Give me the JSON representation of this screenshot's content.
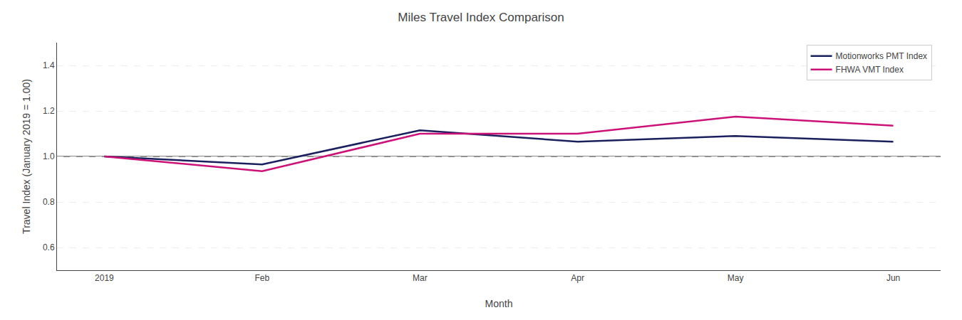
{
  "chart_data": {
    "type": "line",
    "title": "Miles Travel Index Comparison",
    "x_label": "Month",
    "y_label": "Travel Index (January 2019 = 1.00)",
    "categories": [
      "2019",
      "Feb",
      "Mar",
      "Apr",
      "May",
      "Jun"
    ],
    "series": [
      {
        "name": "Motionworks PMT Index",
        "color": "#1a1f5e",
        "values": [
          1.0,
          0.965,
          1.115,
          1.065,
          1.09,
          1.065
        ]
      },
      {
        "name": "FHWA VMT Index",
        "color": "#cc1177",
        "values": [
          1.0,
          0.935,
          1.1,
          1.1,
          1.175,
          1.135
        ]
      }
    ],
    "reference_line": {
      "value": 1.0,
      "color": "#222222"
    },
    "ylim": [
      0.5,
      1.5
    ],
    "yticks": [
      0.6,
      0.8,
      {
        "value": 1.0,
        "label": "1.0"
      },
      1.2,
      1.4
    ],
    "grid": true,
    "legend": "upper right"
  }
}
